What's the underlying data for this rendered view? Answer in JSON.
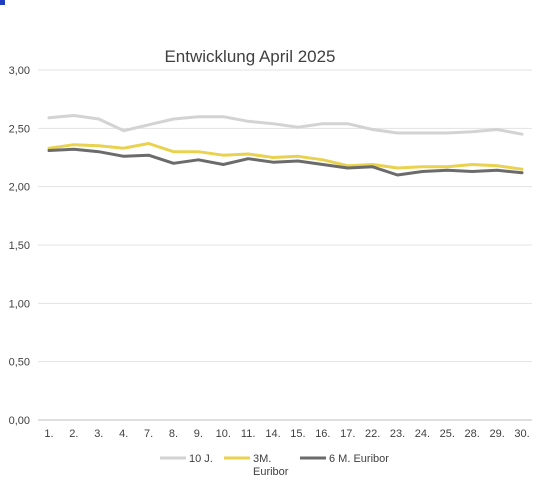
{
  "chart_data": {
    "type": "line",
    "title": "Entwicklung April 2025",
    "xlabel": "",
    "ylabel": "",
    "categories": [
      "1.",
      "2.",
      "3.",
      "4.",
      "7.",
      "8.",
      "9.",
      "10.",
      "11.",
      "14.",
      "15.",
      "16.",
      "17.",
      "22.",
      "23.",
      "24.",
      "25.",
      "28.",
      "29.",
      "30."
    ],
    "ylim": [
      0,
      3
    ],
    "yticks": [
      "0,00",
      "0,50",
      "1,00",
      "1,50",
      "2,00",
      "2,50",
      "3,00"
    ],
    "grid": true,
    "legend_position": "bottom",
    "series": [
      {
        "name": "10 J.",
        "color": "#d3d3d3",
        "values": [
          2.59,
          2.61,
          2.58,
          2.48,
          2.53,
          2.58,
          2.6,
          2.6,
          2.56,
          2.54,
          2.51,
          2.54,
          2.54,
          2.49,
          2.46,
          2.46,
          2.46,
          2.47,
          2.49,
          2.45
        ]
      },
      {
        "name": "3M. Euribor",
        "name_lines": [
          "3M.",
          "Euribor"
        ],
        "color": "#e8d24f",
        "values": [
          2.33,
          2.36,
          2.35,
          2.33,
          2.37,
          2.3,
          2.3,
          2.27,
          2.28,
          2.25,
          2.26,
          2.23,
          2.18,
          2.19,
          2.16,
          2.17,
          2.17,
          2.19,
          2.18,
          2.15
        ]
      },
      {
        "name": "6 M. Euribor",
        "color": "#6b6b6b",
        "values": [
          2.31,
          2.32,
          2.3,
          2.26,
          2.27,
          2.2,
          2.23,
          2.19,
          2.24,
          2.21,
          2.22,
          2.19,
          2.16,
          2.17,
          2.1,
          2.13,
          2.14,
          2.13,
          2.14,
          2.12
        ]
      }
    ]
  }
}
